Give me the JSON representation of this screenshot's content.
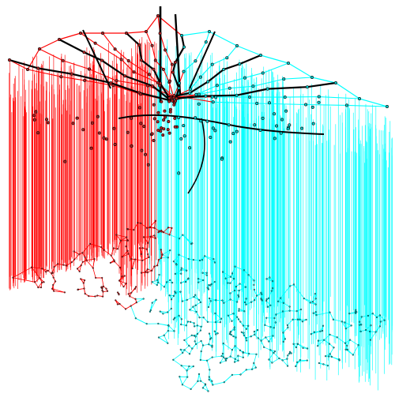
{
  "figure": {
    "kind": "3d-network-projection",
    "background_color": "#ffffff",
    "colors": {
      "group_a": "#ff0000",
      "group_b": "#00ffff",
      "node_fill_a": "#b22222",
      "node_fill_b": "#00cccc",
      "node_outline": "#000000",
      "upper_trunk": "#000000"
    }
  }
}
